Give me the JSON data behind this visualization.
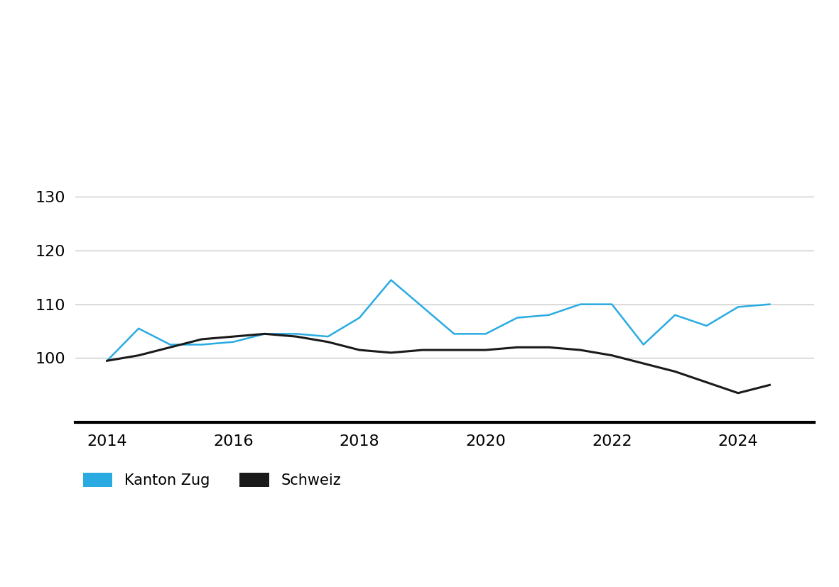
{
  "kanton_zug": {
    "x": [
      2014.0,
      2014.5,
      2015.0,
      2015.5,
      2016.0,
      2016.5,
      2017.0,
      2017.5,
      2018.0,
      2018.5,
      2019.0,
      2019.5,
      2020.0,
      2020.5,
      2021.0,
      2021.5,
      2022.0,
      2022.5,
      2023.0,
      2023.5,
      2024.0,
      2024.5
    ],
    "y": [
      99.5,
      105.5,
      102.5,
      102.5,
      103.0,
      104.5,
      104.5,
      104.0,
      107.5,
      114.5,
      109.5,
      104.5,
      104.5,
      107.5,
      108.0,
      110.0,
      110.0,
      102.5,
      108.0,
      106.0,
      109.5,
      110.0
    ],
    "color": "#29ABE2",
    "label": "Kanton Zug",
    "linewidth": 1.8
  },
  "schweiz": {
    "x": [
      2014.0,
      2014.5,
      2015.0,
      2015.5,
      2016.0,
      2016.5,
      2017.0,
      2017.5,
      2018.0,
      2018.5,
      2019.0,
      2019.5,
      2020.0,
      2020.5,
      2021.0,
      2021.5,
      2022.0,
      2022.5,
      2023.0,
      2023.5,
      2024.0,
      2024.5
    ],
    "y": [
      99.5,
      100.5,
      102.0,
      103.5,
      104.0,
      104.5,
      104.0,
      103.0,
      101.5,
      101.0,
      101.5,
      101.5,
      101.5,
      102.0,
      102.0,
      101.5,
      100.5,
      99.0,
      97.5,
      95.5,
      93.5,
      95.0
    ],
    "color": "#1a1a1a",
    "label": "Schweiz",
    "linewidth": 2.2
  },
  "xlim": [
    2013.5,
    2025.2
  ],
  "ylim": [
    88,
    136
  ],
  "xticks": [
    2014,
    2016,
    2018,
    2020,
    2022,
    2024
  ],
  "yticks": [
    100,
    110,
    120,
    130
  ],
  "grid_color": "#bbbbbb",
  "background_color": "#ffffff",
  "tick_fontsize": 16,
  "legend_fontsize": 15
}
